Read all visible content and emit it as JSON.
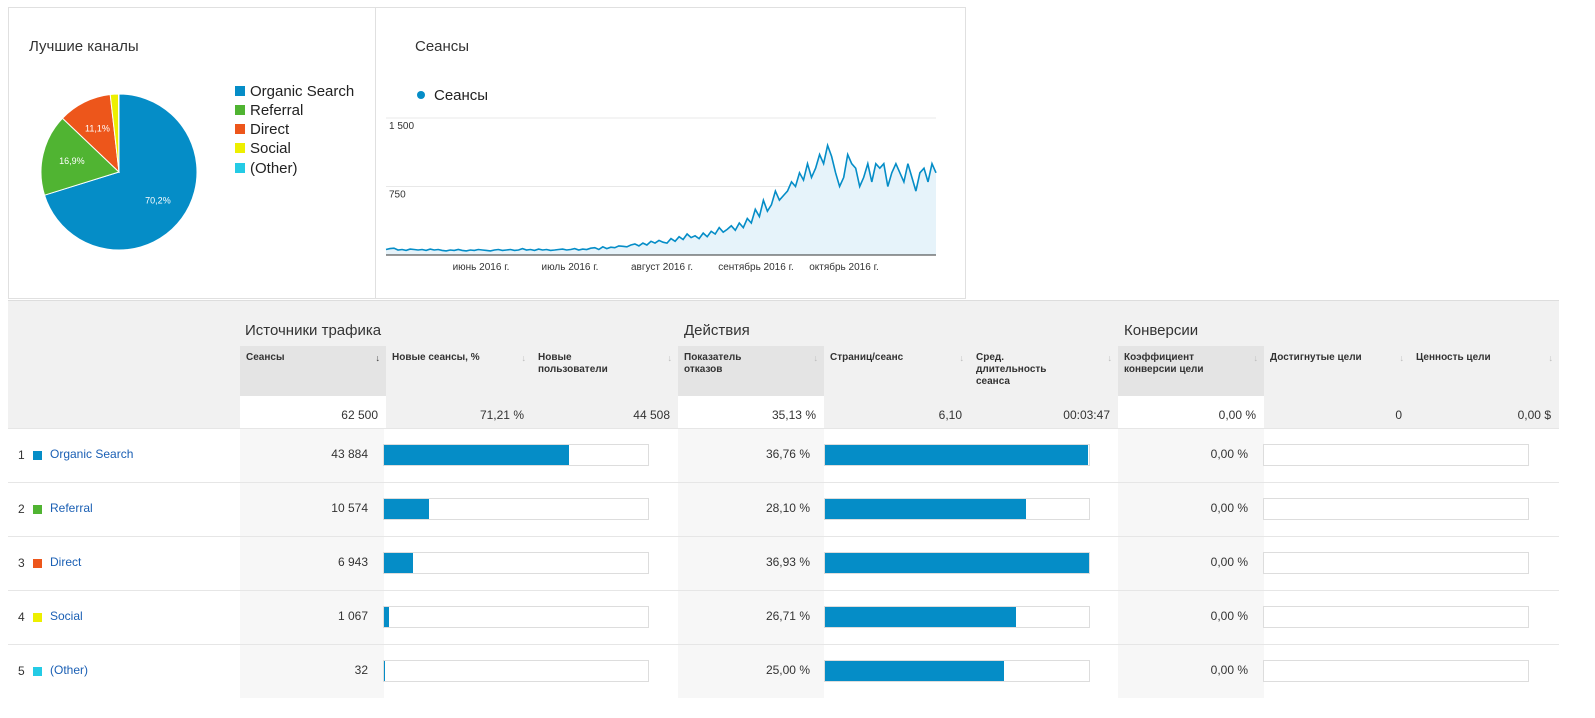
{
  "pie_panel": {
    "title": "Лучшие каналы",
    "legend": [
      {
        "label": "Organic Search",
        "color": "#058dc7"
      },
      {
        "label": "Referral",
        "color": "#50b432"
      },
      {
        "label": "Direct",
        "color": "#ed561b"
      },
      {
        "label": "Social",
        "color": "#edef00"
      },
      {
        "label": "(Other)",
        "color": "#24cbe5"
      }
    ]
  },
  "line_panel": {
    "title": "Сеансы"
  },
  "chart_data": [
    {
      "type": "pie",
      "title": "",
      "labels": [
        "Organic Search",
        "Referral",
        "Direct",
        "Social",
        "(Other)"
      ],
      "values": [
        70.2,
        16.9,
        11.1,
        1.7,
        0.1
      ],
      "data_labels": [
        "70,2%",
        "16,9%",
        "11,1%",
        "",
        ""
      ],
      "colors": [
        "#058dc7",
        "#50b432",
        "#ed561b",
        "#edef00",
        "#24cbe5"
      ],
      "legend_placement": "right"
    },
    {
      "type": "area",
      "title": "",
      "series": [
        {
          "name": "Сеансы",
          "color": "#058dc7",
          "values": [
            60,
            70,
            75,
            55,
            60,
            50,
            65,
            60,
            55,
            60,
            50,
            65,
            55,
            60,
            50,
            45,
            55,
            50,
            60,
            50,
            45,
            55,
            50,
            60,
            55,
            50,
            45,
            55,
            60,
            50,
            55,
            60,
            50,
            55,
            70,
            55,
            60,
            50,
            65,
            55,
            60,
            50,
            55,
            60,
            65,
            55,
            60,
            70,
            55,
            65,
            60,
            75,
            80,
            60,
            90,
            70,
            85,
            80,
            100,
            95,
            90,
            110,
            120,
            100,
            130,
            110,
            150,
            130,
            160,
            140,
            130,
            180,
            150,
            200,
            170,
            230,
            190,
            210,
            180,
            240,
            200,
            260,
            230,
            300,
            250,
            280,
            320,
            270,
            350,
            300,
            400,
            350,
            500,
            420,
            600,
            480,
            550,
            700,
            600,
            650,
            700,
            800,
            750,
            900,
            820,
            1000,
            850,
            950,
            1100,
            1000,
            1200,
            1080,
            900,
            750,
            850,
            1100,
            1000,
            950,
            750,
            850,
            1000,
            800,
            1000,
            950,
            1000,
            750,
            900,
            1000,
            900,
            800,
            1000,
            850,
            700,
            900,
            950,
            800,
            1000,
            900
          ]
        }
      ],
      "x_tick_labels": [
        "июнь 2016 г.",
        "июль 2016 г.",
        "август 2016 г.",
        "сентябрь 2016 г.",
        "октябрь 2016 г."
      ],
      "y_tick_labels": [
        "750",
        "1 500"
      ],
      "ylim": [
        0,
        1500
      ],
      "grid": true,
      "legend_placement": "top-left"
    }
  ],
  "table": {
    "groups": [
      "Источники трафика",
      "Действия",
      "Конверсии"
    ],
    "columns": [
      "Сеансы",
      "Новые сеансы, %",
      "Новые пользователи",
      "Показатель отказов",
      "Страниц/сеанс",
      "Сред. длительность сеанса",
      "Коэффициент конверсии цели",
      "Достигнутые цели",
      "Ценность цели"
    ],
    "totals": [
      "62 500",
      "71,21 %",
      "44 508",
      "35,13 %",
      "6,10",
      "00:03:47",
      "0,00 %",
      "0",
      "0,00 $"
    ],
    "rows": [
      {
        "num": "1",
        "name": "Organic Search",
        "color": "#058dc7",
        "sessions": "43 884",
        "sessions_share": 0.702,
        "bounce": "36,76 %",
        "bounce_share": 0.995,
        "conv": "0,00 %",
        "conv_share": 0
      },
      {
        "num": "2",
        "name": "Referral",
        "color": "#50b432",
        "sessions": "10 574",
        "sessions_share": 0.169,
        "bounce": "28,10 %",
        "bounce_share": 0.761,
        "conv": "0,00 %",
        "conv_share": 0
      },
      {
        "num": "3",
        "name": "Direct",
        "color": "#ed561b",
        "sessions": "6 943",
        "sessions_share": 0.111,
        "bounce": "36,93 %",
        "bounce_share": 1.0,
        "conv": "0,00 %",
        "conv_share": 0
      },
      {
        "num": "4",
        "name": "Social",
        "color": "#edef00",
        "sessions": "1 067",
        "sessions_share": 0.017,
        "bounce": "26,71 %",
        "bounce_share": 0.723,
        "conv": "0,00 %",
        "conv_share": 0
      },
      {
        "num": "5",
        "name": "(Other)",
        "color": "#24cbe5",
        "sessions": "32",
        "sessions_share": 0.001,
        "bounce": "25,00 %",
        "bounce_share": 0.677,
        "conv": "0,00 %",
        "conv_share": 0
      }
    ]
  }
}
